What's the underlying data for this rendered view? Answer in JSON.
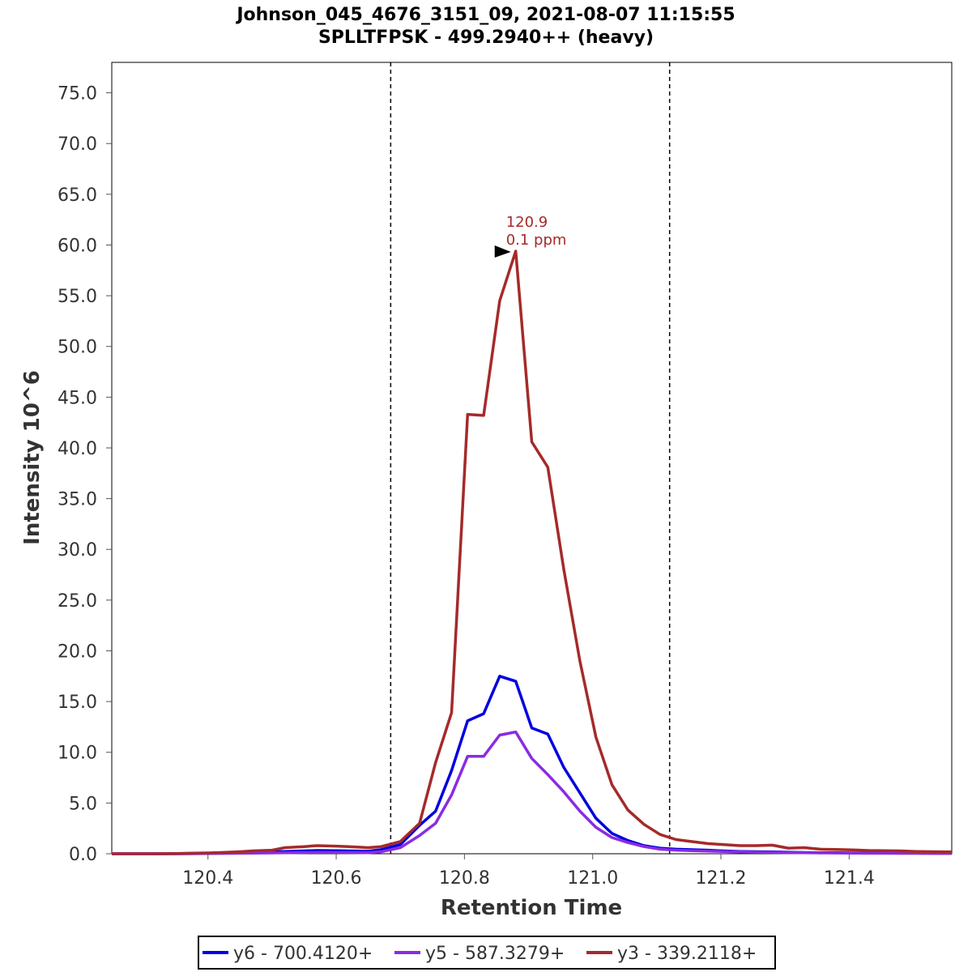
{
  "chart_data": {
    "type": "line",
    "title_line1": "Johnson_045_4676_3151_09, 2021-08-07 11:15:55",
    "title_line2": "SPLLTFPSK - 499.2940++ (heavy)",
    "xlabel": "Retention Time",
    "ylabel": "Intensity 10^6",
    "xlim": [
      120.25,
      121.56
    ],
    "ylim": [
      0,
      78
    ],
    "xticks": [
      "120.4",
      "120.6",
      "120.8",
      "121.0",
      "121.2",
      "121.4"
    ],
    "yticks": [
      "0.0",
      "5.0",
      "10.0",
      "15.0",
      "20.0",
      "25.0",
      "30.0",
      "35.0",
      "40.0",
      "45.0",
      "50.0",
      "55.0",
      "60.0",
      "65.0",
      "70.0",
      "75.0"
    ],
    "boundaries": [
      120.685,
      121.12
    ],
    "x": [
      120.25,
      120.27,
      120.3,
      120.32,
      120.35,
      120.37,
      120.4,
      120.42,
      120.45,
      120.47,
      120.5,
      120.52,
      120.55,
      120.57,
      120.6,
      120.62,
      120.65,
      120.67,
      120.7,
      120.73,
      120.755,
      120.78,
      120.805,
      120.83,
      120.855,
      120.88,
      120.905,
      120.93,
      120.955,
      120.98,
      121.005,
      121.03,
      121.055,
      121.08,
      121.105,
      121.13,
      121.155,
      121.18,
      121.205,
      121.23,
      121.255,
      121.28,
      121.305,
      121.33,
      121.355,
      121.38,
      121.405,
      121.43,
      121.455,
      121.48,
      121.505,
      121.53,
      121.56
    ],
    "series": [
      {
        "name": "y6 - 700.4120+",
        "color": "#0000e0",
        "values": [
          0.0,
          0.0,
          0.0,
          0.0,
          0.0,
          0.02,
          0.05,
          0.08,
          0.1,
          0.12,
          0.18,
          0.22,
          0.28,
          0.32,
          0.3,
          0.28,
          0.25,
          0.4,
          0.9,
          2.8,
          4.2,
          8.2,
          13.1,
          13.8,
          17.5,
          17.0,
          12.4,
          11.8,
          8.5,
          6.0,
          3.5,
          2.0,
          1.3,
          0.8,
          0.55,
          0.45,
          0.4,
          0.35,
          0.28,
          0.22,
          0.2,
          0.18,
          0.15,
          0.12,
          0.1,
          0.1,
          0.08,
          0.08,
          0.07,
          0.06,
          0.06,
          0.05,
          0.05
        ]
      },
      {
        "name": "y5 - 587.3279+",
        "color": "#8a2be2",
        "values": [
          0.0,
          0.0,
          0.0,
          0.0,
          0.0,
          0.0,
          0.02,
          0.03,
          0.05,
          0.06,
          0.08,
          0.1,
          0.12,
          0.14,
          0.13,
          0.12,
          0.1,
          0.2,
          0.6,
          1.8,
          3.0,
          5.8,
          9.6,
          9.6,
          11.7,
          12.0,
          9.4,
          7.8,
          6.1,
          4.2,
          2.6,
          1.6,
          1.1,
          0.7,
          0.45,
          0.35,
          0.3,
          0.26,
          0.22,
          0.18,
          0.15,
          0.13,
          0.11,
          0.1,
          0.08,
          0.07,
          0.06,
          0.05,
          0.05,
          0.04,
          0.04,
          0.03,
          0.03
        ]
      },
      {
        "name": "y3 - 339.2118+",
        "color": "#a52a2a",
        "values": [
          0.0,
          0.0,
          0.0,
          0.0,
          0.02,
          0.05,
          0.08,
          0.12,
          0.2,
          0.28,
          0.35,
          0.6,
          0.7,
          0.8,
          0.75,
          0.7,
          0.6,
          0.7,
          1.2,
          3.0,
          9.0,
          13.9,
          43.3,
          43.2,
          54.5,
          59.4,
          40.6,
          38.1,
          28.0,
          19.0,
          11.5,
          6.8,
          4.3,
          2.9,
          1.9,
          1.4,
          1.2,
          1.0,
          0.9,
          0.8,
          0.8,
          0.85,
          0.55,
          0.6,
          0.45,
          0.42,
          0.38,
          0.32,
          0.3,
          0.28,
          0.22,
          0.2,
          0.18
        ]
      }
    ],
    "peak_annotation": {
      "x": 120.88,
      "y": 59.4,
      "color": "#a52a2a",
      "line1": "120.9",
      "line2": "0.1 ppm"
    }
  }
}
